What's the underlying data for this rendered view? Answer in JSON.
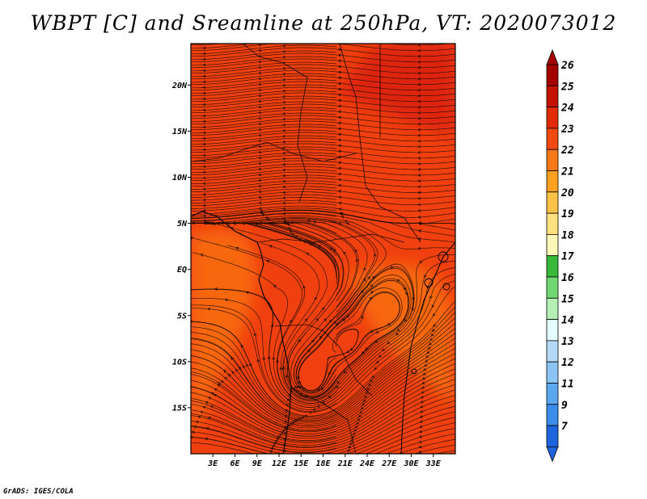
{
  "title": "WBPT [C] and Sreamline at 250hPa, VT: 2020073012",
  "credit": "GrADS: IGES/COLA",
  "map": {
    "lon_range": [
      0,
      36
    ],
    "lat_range": [
      -20,
      24.5
    ],
    "lon_ticks": [
      {
        "value": 3,
        "label": "3E"
      },
      {
        "value": 6,
        "label": "6E"
      },
      {
        "value": 9,
        "label": "9E"
      },
      {
        "value": 12,
        "label": "12E"
      },
      {
        "value": 15,
        "label": "15E"
      },
      {
        "value": 18,
        "label": "18E"
      },
      {
        "value": 21,
        "label": "21E"
      },
      {
        "value": 24,
        "label": "24E"
      },
      {
        "value": 27,
        "label": "27E"
      },
      {
        "value": 30,
        "label": "30E"
      },
      {
        "value": 33,
        "label": "33E"
      }
    ],
    "lat_ticks": [
      {
        "value": 20,
        "label": "20N"
      },
      {
        "value": 15,
        "label": "15N"
      },
      {
        "value": 10,
        "label": "10N"
      },
      {
        "value": 5,
        "label": "5N"
      },
      {
        "value": 0,
        "label": "EQ"
      },
      {
        "value": -5,
        "label": "5S"
      },
      {
        "value": -10,
        "label": "10S"
      },
      {
        "value": -15,
        "label": "15S"
      }
    ],
    "background_color": "#f04010",
    "shaded_regions": [
      {
        "name": "northeast-high",
        "value": 25,
        "color": "#d82008"
      },
      {
        "name": "west-equatorial-low",
        "value": 23,
        "color": "#f86e10"
      },
      {
        "name": "southeast-low",
        "value": 23,
        "color": "#f86e10"
      }
    ]
  },
  "colorbar": {
    "levels": [
      {
        "label": "26",
        "color": "#a50000"
      },
      {
        "label": "25",
        "color": "#c41200"
      },
      {
        "label": "24",
        "color": "#e02a08"
      },
      {
        "label": "23",
        "color": "#f04a10"
      },
      {
        "label": "22",
        "color": "#f87818"
      },
      {
        "label": "21",
        "color": "#fca020"
      },
      {
        "label": "20",
        "color": "#fcc248"
      },
      {
        "label": "19",
        "color": "#fde080"
      },
      {
        "label": "18",
        "color": "#fef8b8"
      },
      {
        "label": "17",
        "color": "#38b838"
      },
      {
        "label": "16",
        "color": "#70d870"
      },
      {
        "label": "15",
        "color": "#b4f0b4"
      },
      {
        "label": "14",
        "color": "#e4fcfc"
      },
      {
        "label": "13",
        "color": "#b4daf8"
      },
      {
        "label": "12",
        "color": "#8cc4f4"
      },
      {
        "label": "11",
        "color": "#5ca8f0"
      },
      {
        "label": "9",
        "color": "#3c8cec"
      },
      {
        "label": "7",
        "color": "#1e64dc"
      }
    ],
    "bottom_extension_color": "#1e64dc"
  }
}
